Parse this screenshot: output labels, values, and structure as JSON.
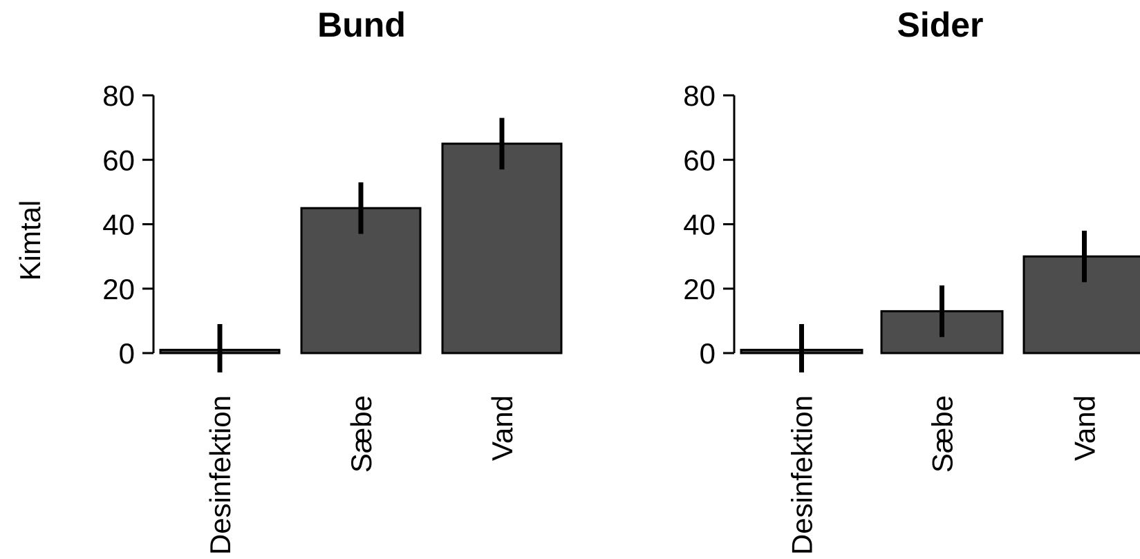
{
  "chart_data": [
    {
      "type": "bar",
      "title": "Bund",
      "ylabel": "Kimtal",
      "categories": [
        "Desinfektion",
        "Sæbe",
        "Vand"
      ],
      "values": [
        1,
        45,
        65
      ],
      "error_low": [
        -6,
        37,
        57
      ],
      "error_high": [
        9,
        53,
        73
      ],
      "yticks": [
        0,
        20,
        40,
        60,
        80
      ],
      "ylim": [
        0,
        80
      ],
      "bar_color": "#4d4d4d",
      "grid": false,
      "legend": "none"
    },
    {
      "type": "bar",
      "title": "Sider",
      "ylabel": "",
      "categories": [
        "Desinfektion",
        "Sæbe",
        "Vand"
      ],
      "values": [
        1,
        13,
        30
      ],
      "error_low": [
        -6,
        5,
        22
      ],
      "error_high": [
        9,
        21,
        38
      ],
      "yticks": [
        0,
        20,
        40,
        60,
        80
      ],
      "ylim": [
        0,
        80
      ],
      "bar_color": "#4d4d4d",
      "grid": false,
      "legend": "none"
    }
  ]
}
